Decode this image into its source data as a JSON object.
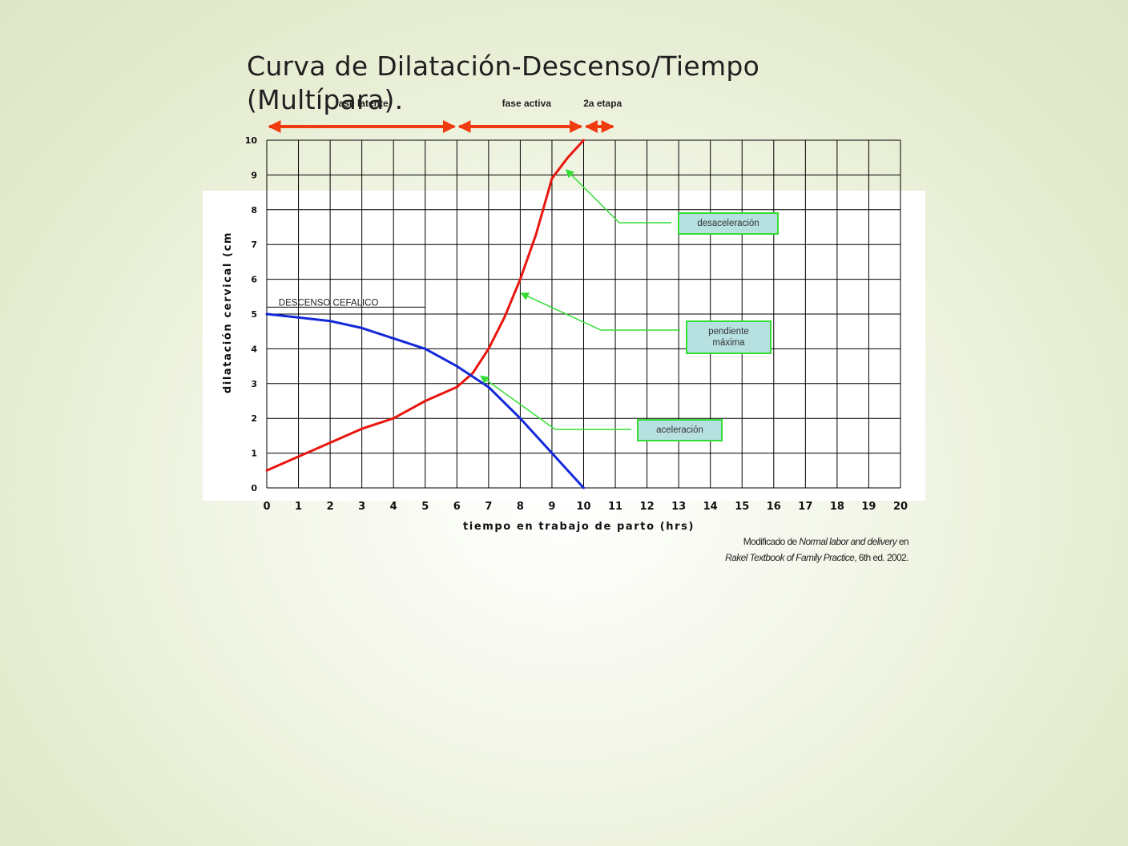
{
  "slide": {
    "title_line1": "Curva de Dilatación-Descenso/Tiempo",
    "title_line2": "(Multípara)."
  },
  "phases": [
    {
      "label": "fase latente",
      "start": 0,
      "end": 6
    },
    {
      "label": "fase activa",
      "start": 6,
      "end": 10
    },
    {
      "label": "2a etapa",
      "start": 10,
      "end": 11
    }
  ],
  "annotations": {
    "desaceleracion": "desaceleración",
    "pendiente_line1": "pendiente",
    "pendiente_line2": "máxima",
    "aceleracion": "aceleración"
  },
  "credit": {
    "line1_prefix": "Modificado de ",
    "line1_italic": "Normal labor and delivery",
    "line1_suffix": " en",
    "line2_italic": "Rakel Textbook of Family Practice",
    "line2_suffix": ", 6th ed. 2002."
  },
  "colors": {
    "dilatation": "#e8160e",
    "descent": "#1428d8",
    "phase_arrow": "#f03a10",
    "annotation_arrow": "#33dd33",
    "annotation_box": "#b7e0e0"
  },
  "chart_data": {
    "type": "line",
    "title": "",
    "xlabel": "tiempo en trabajo de parto (hrs)",
    "ylabel": "dilatación cervical (cm",
    "xlim": [
      0,
      20
    ],
    "ylim": [
      0,
      10
    ],
    "xticks": [
      0,
      1,
      2,
      3,
      4,
      5,
      6,
      7,
      8,
      9,
      10,
      11,
      12,
      13,
      14,
      15,
      16,
      17,
      18,
      19,
      20
    ],
    "yticks": [
      0,
      1,
      2,
      3,
      4,
      5,
      6,
      7,
      8,
      9,
      10
    ],
    "grid": true,
    "series": [
      {
        "name": "",
        "color": "#e8160e",
        "points": [
          [
            0,
            0.5
          ],
          [
            1,
            0.9
          ],
          [
            2,
            1.3
          ],
          [
            3,
            1.7
          ],
          [
            4,
            2.0
          ],
          [
            5,
            2.5
          ],
          [
            6,
            2.9
          ],
          [
            6.5,
            3.3
          ],
          [
            7,
            4.0
          ],
          [
            7.5,
            4.9
          ],
          [
            8,
            6.0
          ],
          [
            8.5,
            7.3
          ],
          [
            9,
            8.9
          ],
          [
            9.5,
            9.5
          ],
          [
            10,
            10.0
          ]
        ]
      },
      {
        "name": "DESCENSO CEFALICO",
        "color": "#1428d8",
        "points": [
          [
            0,
            5.0
          ],
          [
            1,
            4.9
          ],
          [
            2,
            4.8
          ],
          [
            3,
            4.6
          ],
          [
            4,
            4.3
          ],
          [
            5,
            4.0
          ],
          [
            6,
            3.5
          ],
          [
            7,
            2.9
          ],
          [
            8,
            2.0
          ],
          [
            9,
            1.0
          ],
          [
            10,
            0.0
          ]
        ]
      }
    ]
  }
}
